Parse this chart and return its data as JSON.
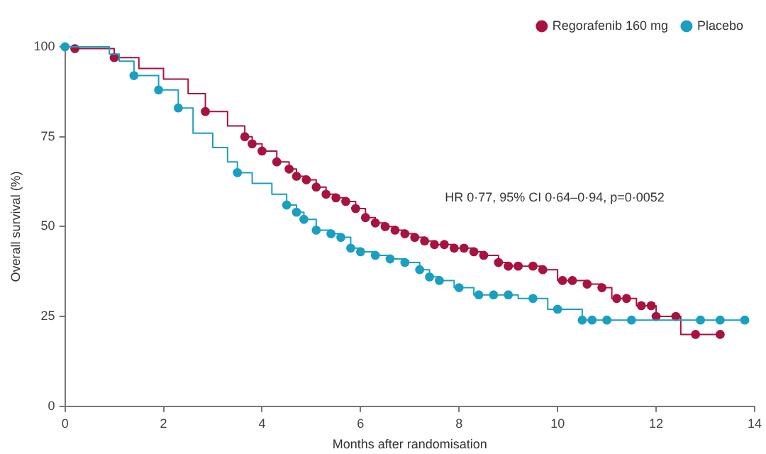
{
  "chart_data": {
    "type": "step",
    "xlabel": "Months after randomisation",
    "ylabel": "Overall survival (%)",
    "xlim": [
      0,
      14
    ],
    "xticks": [
      0,
      2,
      4,
      6,
      8,
      10,
      12,
      14
    ],
    "ylim": [
      0,
      100
    ],
    "yticks": [
      0,
      25,
      50,
      75,
      100
    ],
    "grid": false,
    "legend": "top right",
    "annotations": [
      "HR 0·77, 95% CI 0·64–0·94, p=0·0052"
    ],
    "series": [
      {
        "name": "Regorafenib 160 mg",
        "marker": "none",
        "color": "#a8123e",
        "x": [
          0,
          0.2,
          1.0,
          1.5,
          2.0,
          2.5,
          2.85,
          3.3,
          3.65,
          3.8,
          4.0,
          4.3,
          4.55,
          4.7,
          4.9,
          5.1,
          5.3,
          5.5,
          5.7,
          5.9,
          6.1,
          6.3,
          6.5,
          6.7,
          6.9,
          7.1,
          7.3,
          7.5,
          7.9,
          8.3,
          8.5,
          8.8,
          9.0,
          9.7,
          10.0,
          10.6,
          10.9,
          11.1,
          11.6,
          12.0,
          12.5,
          13.3
        ],
        "values": [
          100,
          99.5,
          97,
          94,
          91,
          87,
          82,
          78,
          75,
          73,
          71,
          68,
          66,
          64,
          63,
          61,
          59,
          58,
          57,
          55,
          52.5,
          51,
          50,
          49,
          48,
          47,
          46,
          45,
          44,
          43,
          42,
          40,
          39,
          38,
          35,
          34,
          33,
          30,
          28,
          25,
          20,
          20
        ]
      },
      {
        "type": "scatter",
        "marker": "circle",
        "color": "#a8123e",
        "x": [
          0.2,
          1.0,
          2.85,
          3.65,
          3.8,
          4.0,
          4.3,
          4.55,
          4.7,
          4.9,
          5.1,
          5.3,
          5.5,
          5.7,
          5.9,
          6.1,
          6.3,
          6.5,
          6.7,
          6.9,
          7.1,
          7.3,
          7.5,
          7.7,
          7.9,
          8.1,
          8.3,
          8.5,
          8.8,
          9.0,
          9.2,
          9.5,
          9.7,
          10.1,
          10.3,
          10.6,
          10.9,
          11.2,
          11.4,
          11.7,
          11.9,
          12.0,
          12.4,
          12.8,
          13.3
        ],
        "values": [
          99.5,
          97,
          82,
          75,
          73,
          71,
          68,
          66,
          64,
          63,
          61,
          59,
          58,
          57,
          55,
          52.5,
          51,
          50,
          49,
          48,
          47,
          46,
          45,
          45,
          44,
          44,
          43,
          42,
          40,
          39,
          39,
          39,
          38,
          35,
          35,
          34,
          33,
          30,
          30,
          28,
          28,
          25,
          25,
          20,
          20
        ]
      },
      {
        "name": "Placebo",
        "marker": "none",
        "color": "#1a9fc0",
        "x": [
          0,
          0.9,
          1.1,
          1.4,
          1.9,
          2.3,
          2.6,
          3.0,
          3.3,
          3.5,
          3.8,
          4.2,
          4.5,
          4.7,
          4.85,
          5.1,
          5.4,
          5.6,
          5.8,
          6.0,
          6.3,
          6.6,
          6.9,
          7.2,
          7.4,
          7.6,
          7.9,
          8.3,
          9.2,
          9.8,
          10.5,
          13.8
        ],
        "values": [
          100,
          98,
          96,
          92,
          88,
          83,
          76,
          72,
          68,
          65,
          62,
          59,
          56,
          54,
          52,
          49,
          48,
          47,
          44,
          43,
          42,
          41,
          40,
          38,
          36,
          35,
          33,
          31,
          30,
          27,
          24,
          24
        ]
      },
      {
        "type": "scatter",
        "marker": "circle",
        "color": "#1a9fc0",
        "x": [
          0,
          1.4,
          1.9,
          2.3,
          3.5,
          4.5,
          4.7,
          4.85,
          5.1,
          5.4,
          5.6,
          5.8,
          6.0,
          6.3,
          6.6,
          6.9,
          7.2,
          7.4,
          7.6,
          8.0,
          8.4,
          8.7,
          9.0,
          9.5,
          10.0,
          10.5,
          10.7,
          11.0,
          11.5,
          12.9,
          13.3,
          13.8
        ],
        "values": [
          100,
          92,
          88,
          83,
          65,
          56,
          54,
          52,
          49,
          48,
          47,
          44,
          43,
          42,
          41,
          40,
          38,
          36,
          35,
          33,
          31,
          31,
          31,
          30,
          27,
          24,
          24,
          24,
          24,
          24,
          24,
          24
        ]
      }
    ]
  }
}
